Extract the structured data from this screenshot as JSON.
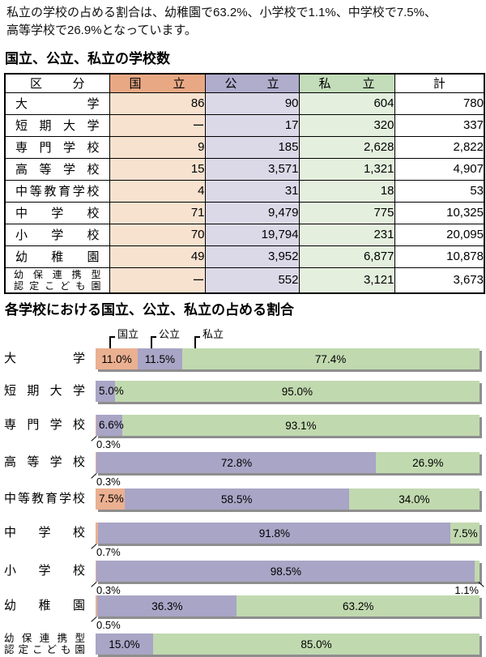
{
  "intro": {
    "line1": "私立の学校の占める割合は、幼稚園で63.2%、小学校で1.1%、中学校で7.5%、",
    "line2": "高等学校で26.9%となっています。"
  },
  "colors": {
    "national": "#eab091",
    "public": "#a8a5c6",
    "private": "#c1d9af",
    "national-header": "#e9a884",
    "public-header": "#afaccc",
    "private-header": "#c3dcb9",
    "national-light": "#f7e2cf",
    "public-light": "#dbd9e7",
    "private-light": "#e4efde"
  },
  "table": {
    "title": "国立、公立、私立の学校数",
    "columns": {
      "category": "区分",
      "national": "国立",
      "public": "公立",
      "private": "私立",
      "total": "計"
    },
    "rows": [
      {
        "label": "大学",
        "national": "86",
        "public": "90",
        "private": "604",
        "total": "780"
      },
      {
        "label": "短期大学",
        "national": "ー",
        "public": "17",
        "private": "320",
        "total": "337"
      },
      {
        "label": "専門学校",
        "national": "9",
        "public": "185",
        "private": "2,628",
        "total": "2,822"
      },
      {
        "label": "高等学校",
        "national": "15",
        "public": "3,571",
        "private": "1,321",
        "total": "4,907"
      },
      {
        "label": "中等教育学校",
        "national": "4",
        "public": "31",
        "private": "18",
        "total": "53"
      },
      {
        "label": "中学校",
        "national": "71",
        "public": "9,479",
        "private": "775",
        "total": "10,325"
      },
      {
        "label": "小学校",
        "national": "70",
        "public": "19,794",
        "private": "231",
        "total": "20,095"
      },
      {
        "label": "幼稚園",
        "national": "49",
        "public": "3,952",
        "private": "6,877",
        "total": "10,878"
      },
      {
        "label1": "幼保連携型",
        "label2": "認定こども園",
        "national": "ー",
        "public": "552",
        "private": "3,121",
        "total": "3,673"
      }
    ]
  },
  "chart": {
    "title": "各学校における国立、公立、私立の占める割合",
    "legend": [
      "国立",
      "公立",
      "私立"
    ],
    "bars": [
      {
        "label": "大学",
        "n_pct": 11.0,
        "n_lbl": "11.0%",
        "p_pct": 11.5,
        "p_lbl": "11.5%",
        "s_pct": 77.4,
        "s_lbl": "77.4%"
      },
      {
        "label": "短期大学",
        "p_pct": 5.0,
        "p_over": "5.0%",
        "s_pct": 95.0,
        "s_lbl": "95.0%"
      },
      {
        "label": "専門学校",
        "n_pct": 0.3,
        "p_pct": 6.6,
        "p_over": "6.6%",
        "s_pct": 93.1,
        "s_lbl": "93.1%",
        "callout_left": "0.3%"
      },
      {
        "label": "高等学校",
        "n_pct": 0.3,
        "p_pct": 72.8,
        "p_lbl": "72.8%",
        "s_pct": 26.9,
        "s_lbl": "26.9%",
        "callout_left": "0.3%"
      },
      {
        "label": "中等教育学校",
        "n_pct": 7.5,
        "n_over": "7.5%",
        "p_pct": 58.5,
        "p_lbl": "58.5%",
        "s_pct": 34.0,
        "s_lbl": "34.0%"
      },
      {
        "label": "中学校",
        "n_pct": 0.7,
        "p_pct": 91.8,
        "p_lbl": "91.8%",
        "s_pct": 7.5,
        "s_lbl": "7.5%",
        "callout_left": "0.7%"
      },
      {
        "label": "小学校",
        "n_pct": 0.3,
        "p_pct": 98.5,
        "p_lbl": "98.5%",
        "s_pct": 1.1,
        "callout_left": "0.3%",
        "callout_right": "1.1%"
      },
      {
        "label": "幼稚園",
        "n_pct": 0.5,
        "p_pct": 36.3,
        "p_lbl": "36.3%",
        "s_pct": 63.2,
        "s_lbl": "63.2%",
        "callout_left": "0.5%"
      },
      {
        "label1": "幼保連携型",
        "label2": "認定こども園",
        "p_pct": 15.0,
        "p_lbl": "15.0%",
        "s_pct": 85.0,
        "s_lbl": "85.0%"
      }
    ]
  },
  "chart_data": {
    "type": "bar",
    "stacked": true,
    "orientation": "horizontal",
    "unit": "%",
    "title": "各学校における国立、公立、私立の占める割合",
    "categories": [
      "大学",
      "短期大学",
      "専門学校",
      "高等学校",
      "中等教育学校",
      "中学校",
      "小学校",
      "幼稚園",
      "幼保連携型認定こども園"
    ],
    "series": [
      {
        "name": "国立",
        "values": [
          11.0,
          0,
          0.3,
          0.3,
          7.5,
          0.7,
          0.3,
          0.5,
          0
        ]
      },
      {
        "name": "公立",
        "values": [
          11.5,
          5.0,
          6.6,
          72.8,
          58.5,
          91.8,
          98.5,
          36.3,
          15.0
        ]
      },
      {
        "name": "私立",
        "values": [
          77.4,
          95.0,
          93.1,
          26.9,
          34.0,
          7.5,
          1.1,
          63.2,
          85.0
        ]
      }
    ],
    "xlim": [
      0,
      100
    ],
    "legend_position": "top",
    "grid": false
  }
}
